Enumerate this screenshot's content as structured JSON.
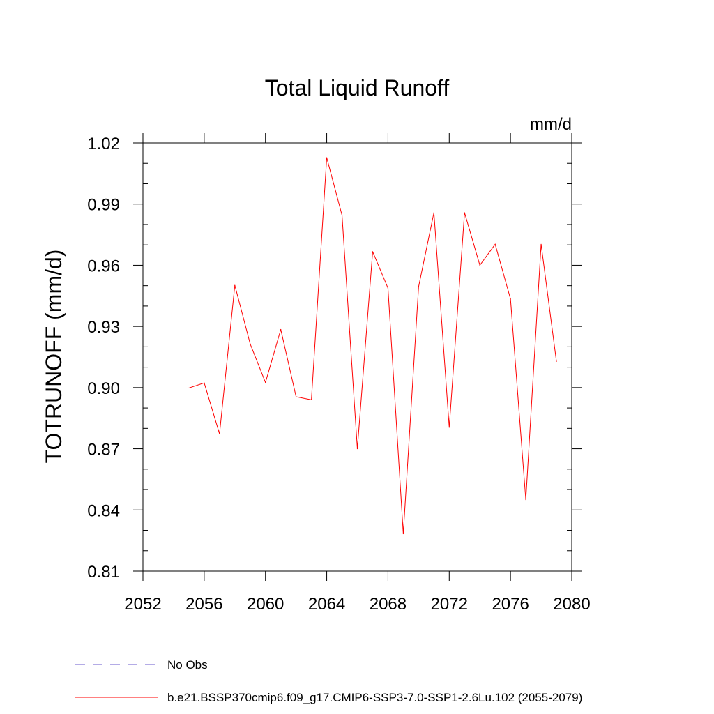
{
  "chart_data": {
    "type": "line",
    "title": "Total Liquid Runoff",
    "units": "mm/d",
    "xlabel": "",
    "ylabel": "TOTRUNOFF  (mm/d)",
    "xlim": [
      2052,
      2080
    ],
    "ylim": [
      0.81,
      1.02
    ],
    "xticks": [
      2052,
      2056,
      2060,
      2064,
      2068,
      2072,
      2076,
      2080
    ],
    "xtick_labels": [
      "2052",
      "2056",
      "2060",
      "2064",
      "2068",
      "2072",
      "2076",
      "2080"
    ],
    "yticks": [
      0.81,
      0.84,
      0.87,
      0.9,
      0.93,
      0.96,
      0.99,
      1.02
    ],
    "ytick_labels": [
      "0.81",
      "0.84",
      "0.87",
      "0.90",
      "0.93",
      "0.96",
      "0.99",
      "1.02"
    ],
    "grid": false,
    "legend_position": "bottom",
    "series": [
      {
        "name": "b.e21.BSSP370cmip6.f09_g17.CMIP6-SSP3-7.0-SSP1-2.6Lu.102 (2055-2079)",
        "color": "#ff0000",
        "x": [
          2055,
          2056,
          2057,
          2058,
          2059,
          2060,
          2061,
          2062,
          2063,
          2064,
          2065,
          2066,
          2067,
          2068,
          2069,
          2070,
          2071,
          2072,
          2073,
          2074,
          2075,
          2076,
          2077,
          2078,
          2079
        ],
        "y": [
          0.8998,
          0.9023,
          0.8773,
          0.9502,
          0.9215,
          0.9025,
          0.9285,
          0.8955,
          0.894,
          1.0128,
          0.9845,
          0.87,
          0.9667,
          0.9488,
          0.8283,
          0.9495,
          0.9858,
          0.8805,
          0.9858,
          0.96,
          0.9703,
          0.9435,
          0.845,
          0.9703,
          0.9128
        ]
      }
    ],
    "legend": [
      {
        "label": "No Obs",
        "style": "dashed",
        "color": "#6a5acd"
      },
      {
        "label": "b.e21.BSSP370cmip6.f09_g17.CMIP6-SSP3-7.0-SSP1-2.6Lu.102 (2055-2079)",
        "style": "solid",
        "color": "#ff0000"
      }
    ]
  }
}
